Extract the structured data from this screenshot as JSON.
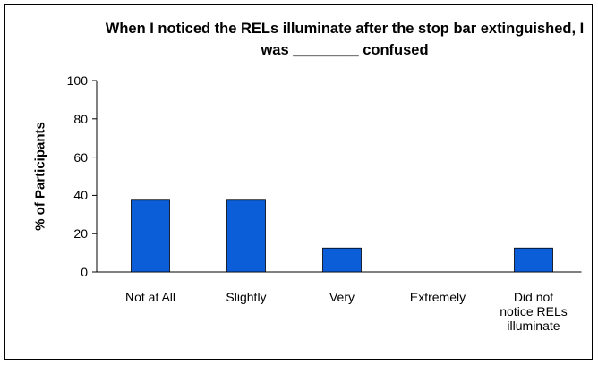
{
  "chart_data": {
    "type": "bar",
    "title": "When I noticed the RELs illuminate after the stop bar extinguished, I was ________ confused",
    "ylabel": "% of Participants",
    "categories": [
      "Not at All",
      "Slightly",
      "Very",
      "Extremely",
      "Did not notice RELs illuminate"
    ],
    "values": [
      37.5,
      37.5,
      12.5,
      0,
      12.5
    ],
    "color": "#0b5ed7",
    "ylim": [
      0,
      100
    ],
    "yticks": [
      0,
      20,
      40,
      60,
      80,
      100
    ],
    "grid": false
  }
}
